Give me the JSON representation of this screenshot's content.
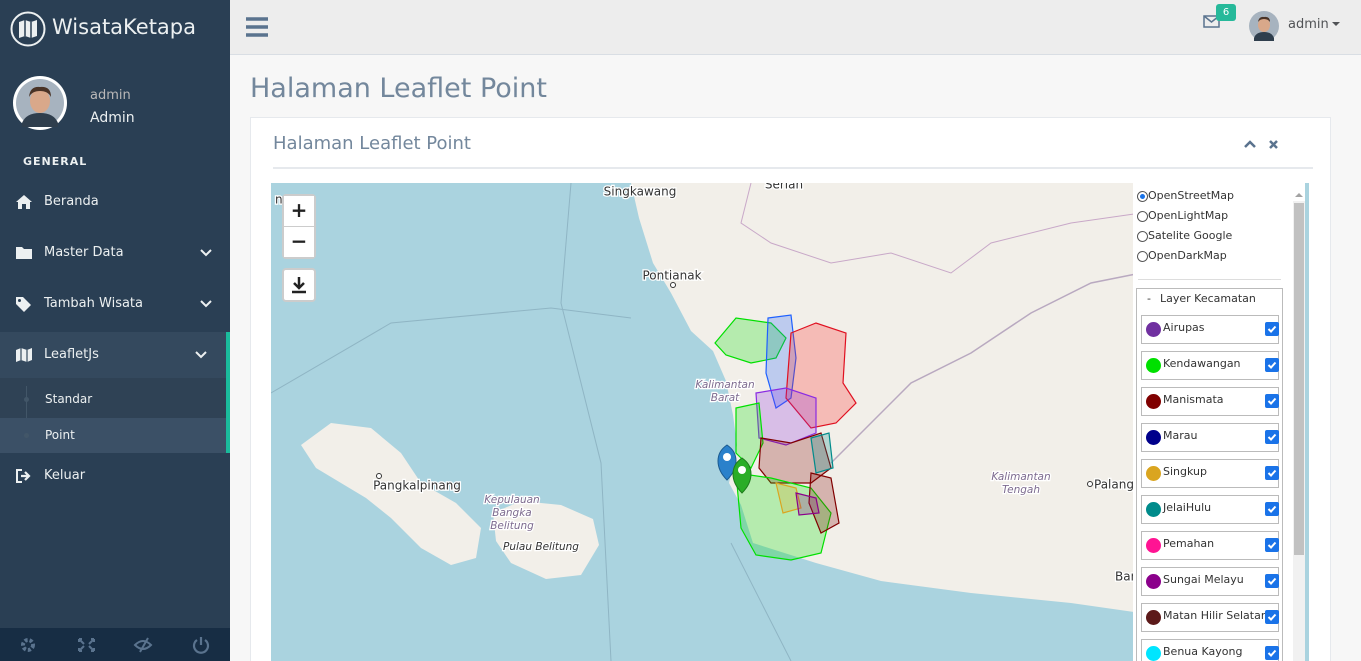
{
  "brand": "WisataKetapa",
  "profile": {
    "greeting": "admin",
    "name": "Admin"
  },
  "menu": {
    "section": "GENERAL",
    "items": [
      {
        "label": "Beranda"
      },
      {
        "label": "Master Data"
      },
      {
        "label": "Tambah Wisata"
      },
      {
        "label": "LeafletJs",
        "children": [
          "Standar",
          "Point"
        ]
      },
      {
        "label": "Keluar"
      }
    ]
  },
  "topbar": {
    "notifications": "6",
    "user": "admin"
  },
  "page": {
    "title": "Halaman Leaflet Point",
    "panel_title": "Halaman Leaflet Point"
  },
  "map": {
    "zoom_in": "+",
    "zoom_out": "−",
    "labels": [
      {
        "lines": [
          "ng"
        ]
      },
      {
        "lines": [
          "Serian"
        ]
      },
      {
        "lines": [
          "Singkawang"
        ]
      },
      {
        "lines": [
          "Pontianak"
        ]
      },
      {
        "lines": [
          "Kalimantan",
          "Barat"
        ]
      },
      {
        "lines": [
          "Pangkalpinang"
        ]
      },
      {
        "lines": [
          "Kepulauan",
          "Bangka",
          "Belitung"
        ]
      },
      {
        "lines": [
          "Pulau Belitung"
        ]
      },
      {
        "lines": [
          "Kalimantan",
          "Tengah"
        ]
      },
      {
        "lines": [
          "Palangk"
        ]
      },
      {
        "lines": [
          "Ban"
        ]
      }
    ],
    "base_layers": [
      {
        "label": "OpenStreetMap",
        "checked": true
      },
      {
        "label": "OpenLightMap",
        "checked": false
      },
      {
        "label": "Satelite Google",
        "checked": false
      },
      {
        "label": "OpenDarkMap",
        "checked": false
      }
    ],
    "overlay_group": "Layer Kecamatan",
    "overlays": [
      {
        "label": "Airupas",
        "color": "#7030a0",
        "checked": true
      },
      {
        "label": "Kendawangan",
        "color": "#00e000",
        "checked": true
      },
      {
        "label": "Manismata",
        "color": "#800000",
        "checked": true
      },
      {
        "label": "Marau",
        "color": "#00008b",
        "checked": true
      },
      {
        "label": "Singkup",
        "color": "#daa520",
        "checked": true
      },
      {
        "label": "JelaiHulu",
        "color": "#008b8b",
        "checked": true
      },
      {
        "label": "Pemahan",
        "color": "#ff1493",
        "checked": true
      },
      {
        "label": "Sungai Melayu",
        "color": "#8b008b",
        "checked": true
      },
      {
        "label": "Matan Hilir Selatan",
        "color": "#5c1a1a",
        "checked": true
      },
      {
        "label": "Benua Kayong",
        "color": "#00e5ff",
        "checked": true
      }
    ]
  }
}
